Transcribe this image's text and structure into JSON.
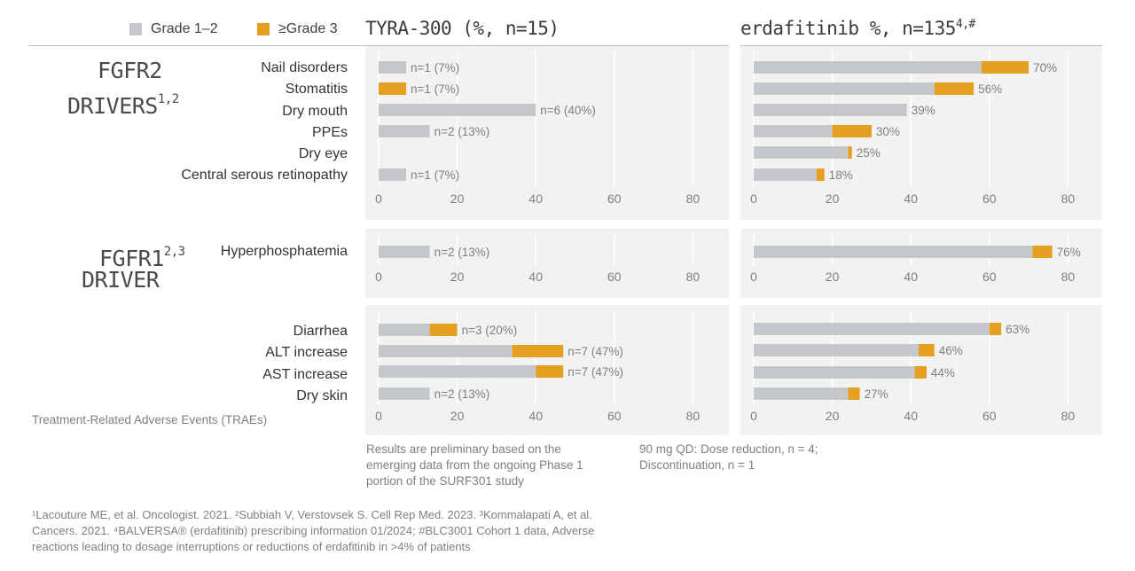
{
  "colors": {
    "grade12": "#c4c8cc",
    "grade3": "#e4a01e",
    "axis_text": "#7f7f7f",
    "panel_bg": "#f2f2f2"
  },
  "legend": {
    "grade12": "Grade 1–2",
    "grade3": "≥Grade 3"
  },
  "headers": {
    "left": "TYRA-300 (%, n=15)",
    "right_main": "erdafitinib %, n=135",
    "right_sup": "4,#"
  },
  "drivers": {
    "fgfr2": {
      "line1": "FGFR2",
      "line2": "DRIVERS",
      "sup": "1,2"
    },
    "fgfr1": {
      "line1": "FGFR1",
      "sup": "2,3",
      "line2": "DRIVER"
    }
  },
  "trae_label": "Treatment-Related Adverse Events (TRAEs)",
  "notes": {
    "left": [
      "Results are preliminary based on the",
      "emerging data from the ongoing Phase 1",
      "portion of the SURF301 study"
    ],
    "right": [
      "90 mg QD: Dose reduction, n = 4;",
      "Discontinuation, n = 1"
    ]
  },
  "footnotes": [
    "¹Lacouture ME, et al. Oncologist. 2021. ²Subbiah V, Verstovsek S. Cell Rep Med. 2023. ³Kommalapati A, et al.",
    "Cancers. 2021. ⁴BALVERSA® (erdafitinib) prescribing information 01/2024; #BLC3001 Cohort 1 data, Adverse",
    "reactions leading to dosage interruptions or reductions of erdafitinib in >4% of patients"
  ],
  "chart_data": [
    {
      "type": "bar",
      "orientation": "horizontal",
      "stacked": true,
      "group": "FGFR2 drivers",
      "study": "TYRA-300",
      "categories": [
        "Nail disorders",
        "Stomatitis",
        "Dry mouth",
        "PPEs",
        "Dry eye",
        "Central serous retinopathy"
      ],
      "series": [
        {
          "name": "Grade 1–2",
          "values": [
            7,
            0,
            40,
            13,
            0,
            7
          ]
        },
        {
          "name": "≥Grade 3",
          "values": [
            0,
            7,
            0,
            0,
            0,
            0
          ]
        }
      ],
      "labels": [
        "n=1 (7%)",
        "n=1 (7%)",
        "n=6 (40%)",
        "n=2 (13%)",
        "",
        "n=1 (7%)"
      ],
      "xlim": [
        0,
        80
      ],
      "xticks": [
        "0",
        "20",
        "40",
        "60",
        "80"
      ]
    },
    {
      "type": "bar",
      "orientation": "horizontal",
      "stacked": true,
      "group": "FGFR2 drivers",
      "study": "erdafitinib",
      "categories": [
        "Nail disorders",
        "Stomatitis",
        "Dry mouth",
        "PPEs",
        "Dry eye",
        "Central serous retinopathy"
      ],
      "series": [
        {
          "name": "Grade 1–2",
          "values": [
            58,
            46,
            39,
            20,
            24,
            16
          ]
        },
        {
          "name": "≥Grade 3",
          "values": [
            12,
            10,
            0,
            10,
            1,
            2
          ]
        }
      ],
      "labels": [
        "70%",
        "56%",
        "39%",
        "30%",
        "25%",
        "18%"
      ],
      "xlim": [
        0,
        80
      ],
      "xticks": [
        "0",
        "20",
        "40",
        "60",
        "80"
      ]
    },
    {
      "type": "bar",
      "orientation": "horizontal",
      "stacked": true,
      "group": "FGFR1 driver",
      "study": "TYRA-300",
      "categories": [
        "Hyperphosphatemia"
      ],
      "series": [
        {
          "name": "Grade 1–2",
          "values": [
            13
          ]
        },
        {
          "name": "≥Grade 3",
          "values": [
            0
          ]
        }
      ],
      "labels": [
        "n=2 (13%)"
      ],
      "xlim": [
        0,
        80
      ],
      "xticks": [
        "0",
        "20",
        "40",
        "60",
        "80"
      ]
    },
    {
      "type": "bar",
      "orientation": "horizontal",
      "stacked": true,
      "group": "FGFR1 driver",
      "study": "erdafitinib",
      "categories": [
        "Hyperphosphatemia"
      ],
      "series": [
        {
          "name": "Grade 1–2",
          "values": [
            71
          ]
        },
        {
          "name": "≥Grade 3",
          "values": [
            5
          ]
        }
      ],
      "labels": [
        "76%"
      ],
      "xlim": [
        0,
        80
      ],
      "xticks": [
        "0",
        "20",
        "40",
        "60",
        "80"
      ]
    },
    {
      "type": "bar",
      "orientation": "horizontal",
      "stacked": true,
      "group": "Other TRAEs",
      "study": "TYRA-300",
      "categories": [
        "Diarrhea",
        "ALT increase",
        "AST increase",
        "Dry skin"
      ],
      "series": [
        {
          "name": "Grade 1–2",
          "values": [
            13,
            34,
            40,
            13
          ]
        },
        {
          "name": "≥Grade 3",
          "values": [
            7,
            13,
            7,
            0
          ]
        }
      ],
      "labels": [
        "n=3 (20%)",
        "n=7 (47%)",
        "n=7 (47%)",
        "n=2 (13%)"
      ],
      "xlim": [
        0,
        80
      ],
      "xticks": [
        "0",
        "20",
        "40",
        "60",
        "80"
      ]
    },
    {
      "type": "bar",
      "orientation": "horizontal",
      "stacked": true,
      "group": "Other TRAEs",
      "study": "erdafitinib",
      "categories": [
        "Diarrhea",
        "ALT increase",
        "AST increase",
        "Dry skin"
      ],
      "series": [
        {
          "name": "Grade 1–2",
          "values": [
            60,
            42,
            41,
            24
          ]
        },
        {
          "name": "≥Grade 3",
          "values": [
            3,
            4,
            3,
            3
          ]
        }
      ],
      "labels": [
        "63%",
        "46%",
        "44%",
        "27%"
      ],
      "xlim": [
        0,
        80
      ],
      "xticks": [
        "0",
        "20",
        "40",
        "60",
        "80"
      ]
    }
  ]
}
